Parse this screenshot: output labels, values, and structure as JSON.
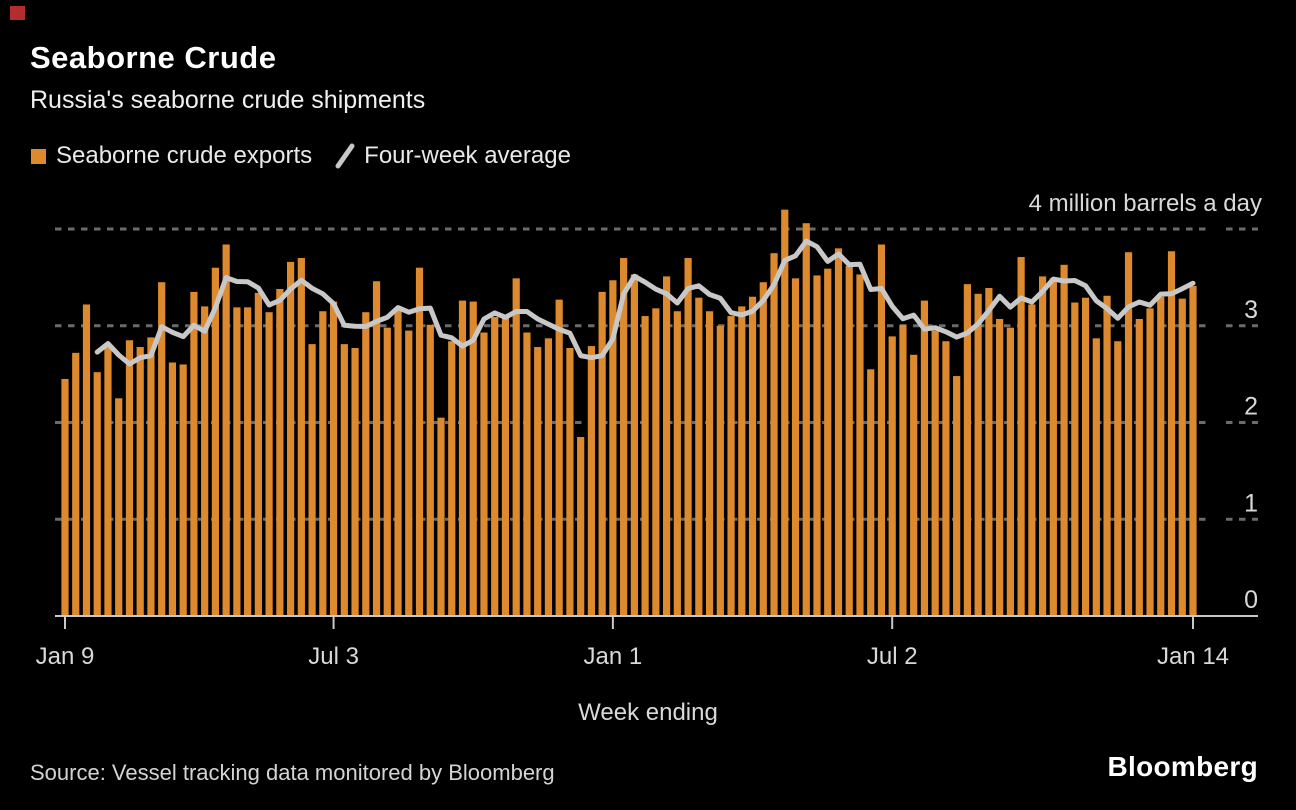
{
  "header": {
    "title": "Seaborne Crude",
    "subtitle": "Russia's seaborne crude shipments"
  },
  "legend": {
    "items": [
      {
        "label": "Seaborne crude exports",
        "color": "#DD8A2E",
        "marker": "square"
      },
      {
        "label": "Four-week average",
        "color": "#C8C8C8",
        "marker": "slash"
      }
    ]
  },
  "colors": {
    "background": "#000000",
    "bar": "#DD8A2E",
    "line": "#C8C8C8",
    "grid": "#6B6B6B",
    "axis": "#C9C9C9",
    "text": "#D9D9D9",
    "brand_mark_red": "#B42D2D"
  },
  "chart_data": {
    "type": "bar",
    "title": "Seaborne Crude",
    "subtitle": "Russia's seaborne crude shipments",
    "y_axis_note": "4 million barrels a day",
    "xlabel": "Week ending",
    "ylabel": "million barrels a day",
    "ylim": [
      0,
      4
    ],
    "y_tick_labels": [
      "0",
      "1",
      "2",
      "3"
    ],
    "grid": "dashed-horizontal",
    "legend_position": "top-left",
    "x_tick_labels": [
      "Jan 9",
      "Jul 3",
      "Jan 1",
      "Jul 2",
      "Jan 14"
    ],
    "x_tick_positions": [
      0,
      25,
      51,
      77,
      105
    ],
    "series": [
      {
        "name": "Seaborne crude exports",
        "type": "bar",
        "color": "#DD8A2E",
        "values": [
          2.45,
          2.72,
          3.22,
          2.52,
          2.8,
          2.25,
          2.85,
          2.78,
          2.88,
          3.45,
          2.62,
          2.6,
          3.35,
          3.2,
          3.6,
          3.84,
          3.19,
          3.19,
          3.34,
          3.14,
          3.38,
          3.66,
          3.7,
          2.81,
          3.15,
          3.25,
          2.81,
          2.77,
          3.14,
          3.46,
          2.98,
          3.17,
          2.95,
          3.6,
          3.01,
          2.05,
          2.84,
          3.26,
          3.25,
          2.93,
          3.09,
          3.08,
          3.49,
          2.93,
          2.78,
          2.87,
          3.27,
          2.77,
          1.85,
          2.79,
          3.35,
          3.47,
          3.7,
          3.53,
          3.1,
          3.18,
          3.51,
          3.15,
          3.7,
          3.29,
          3.15,
          3.0,
          3.1,
          3.2,
          3.3,
          3.45,
          3.75,
          4.2,
          3.49,
          4.06,
          3.52,
          3.59,
          3.8,
          3.62,
          3.53,
          2.55,
          3.84,
          2.89,
          3.01,
          2.7,
          3.26,
          2.95,
          2.84,
          2.48,
          3.43,
          3.33,
          3.39,
          3.07,
          2.98,
          3.71,
          3.22,
          3.51,
          3.49,
          3.63,
          3.24,
          3.29,
          2.87,
          3.31,
          2.84,
          3.76,
          3.07,
          3.18,
          3.3,
          3.77,
          3.28,
          3.41
        ]
      },
      {
        "name": "Four-week average",
        "type": "line",
        "color": "#C8C8C8",
        "derived": "rolling_mean_window_4_of_series_0"
      }
    ]
  },
  "footer": {
    "source": "Source: Vessel tracking data monitored by Bloomberg",
    "brand": "Bloomberg"
  }
}
